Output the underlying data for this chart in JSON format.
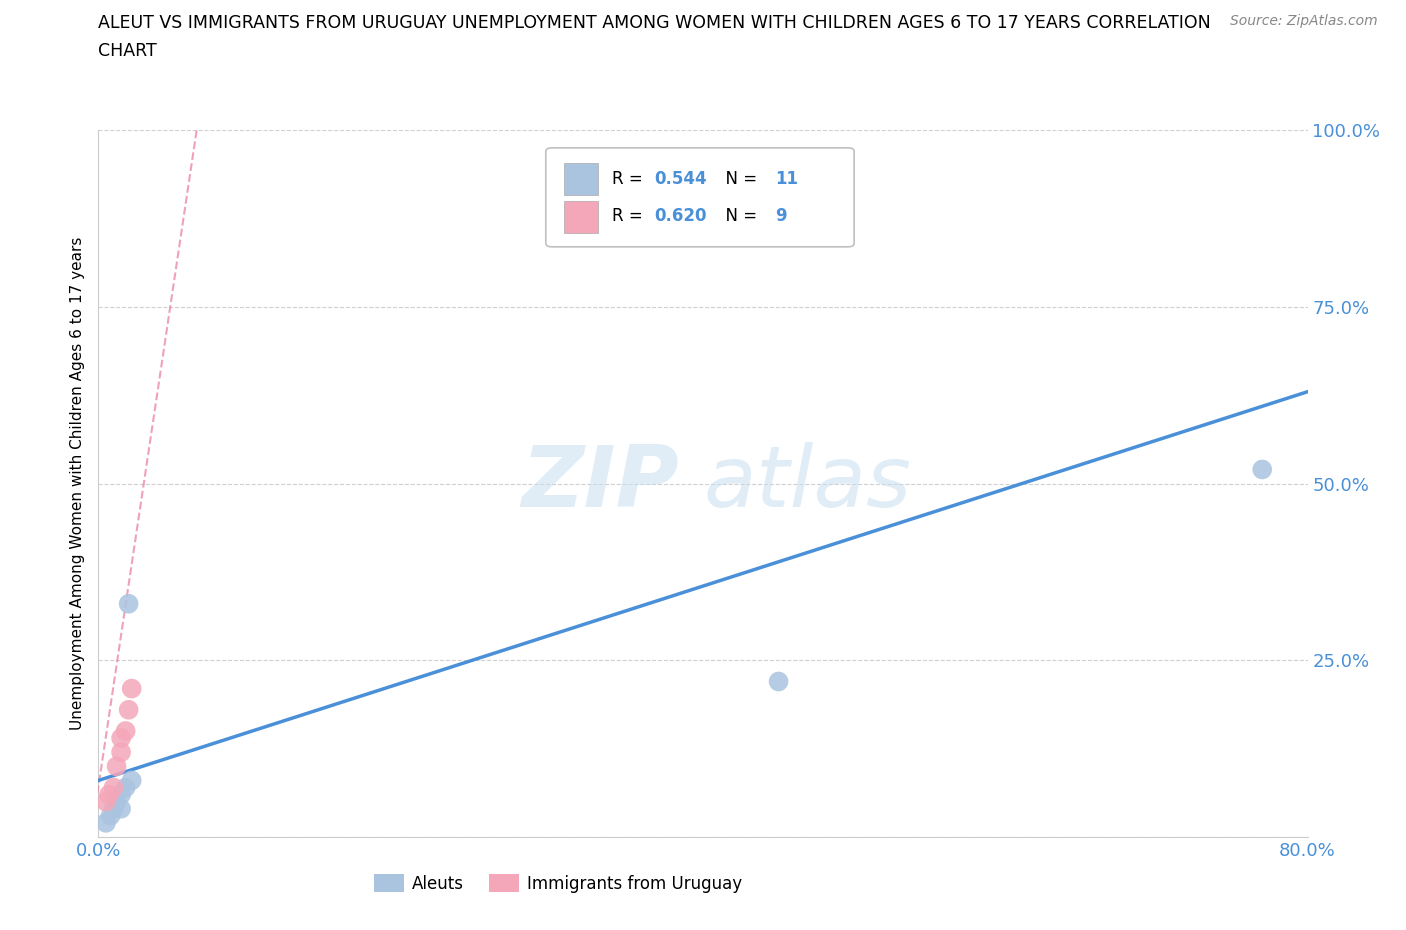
{
  "title_line1": "ALEUT VS IMMIGRANTS FROM URUGUAY UNEMPLOYMENT AMONG WOMEN WITH CHILDREN AGES 6 TO 17 YEARS CORRELATION",
  "title_line2": "CHART",
  "source": "Source: ZipAtlas.com",
  "ylabel": "Unemployment Among Women with Children Ages 6 to 17 years",
  "xlim": [
    0.0,
    0.8
  ],
  "ylim": [
    0.0,
    1.0
  ],
  "xticks": [
    0.0,
    0.2,
    0.4,
    0.6,
    0.8
  ],
  "yticks": [
    0.0,
    0.25,
    0.5,
    0.75,
    1.0
  ],
  "aleut_color": "#aac4e0",
  "uruguay_color": "#f4a7b9",
  "aleut_line_color": "#4a90d9",
  "uruguay_line_color": "#e87a9b",
  "aleut_R": 0.544,
  "aleut_N": 11,
  "uruguay_R": 0.62,
  "uruguay_N": 9,
  "watermark_zip": "ZIP",
  "watermark_atlas": "atlas",
  "background_color": "#ffffff",
  "grid_color": "#d0d0d0",
  "aleut_x": [
    0.005,
    0.008,
    0.01,
    0.012,
    0.015,
    0.015,
    0.018,
    0.02,
    0.022,
    0.45,
    0.77
  ],
  "aleut_y": [
    0.02,
    0.03,
    0.04,
    0.05,
    0.04,
    0.06,
    0.07,
    0.33,
    0.08,
    0.22,
    0.52
  ],
  "uruguay_x": [
    0.005,
    0.007,
    0.01,
    0.012,
    0.015,
    0.015,
    0.018,
    0.02,
    0.022
  ],
  "uruguay_y": [
    0.05,
    0.06,
    0.07,
    0.1,
    0.12,
    0.14,
    0.15,
    0.18,
    0.21
  ],
  "aleut_trend_x": [
    0.0,
    0.8
  ],
  "aleut_trend_y": [
    0.08,
    0.63
  ],
  "uruguay_trend_x": [
    -0.005,
    0.065
  ],
  "uruguay_trend_y": [
    0.0,
    1.0
  ]
}
